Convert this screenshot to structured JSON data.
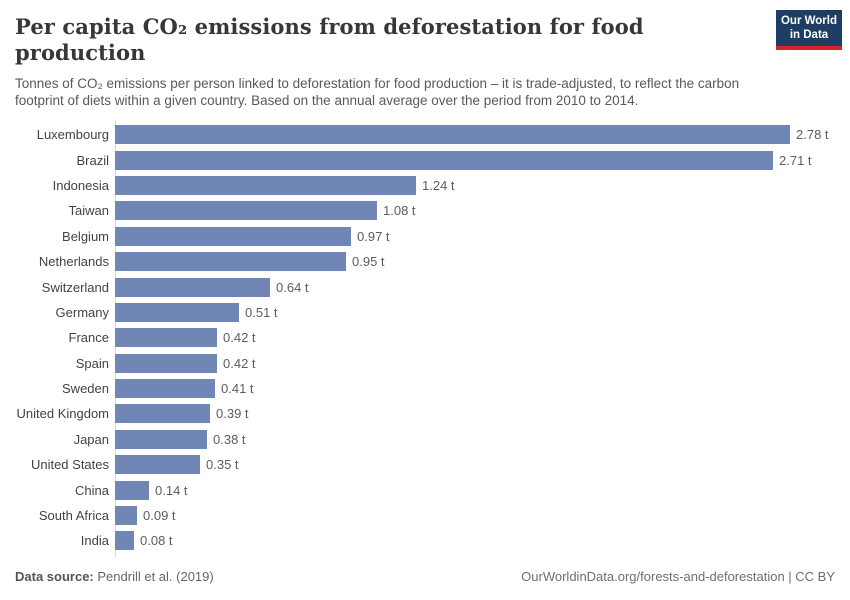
{
  "header": {
    "title": "Per capita CO₂ emissions from deforestation for food production",
    "subtitle": "Tonnes of CO₂ emissions per person linked to deforestation for food production – it is trade-adjusted, to reflect the carbon footprint of diets within a given country. Based on the annual average over the period from 2010 to 2014.",
    "logo": {
      "line1": "Our World",
      "line2": "in Data"
    }
  },
  "chart_data": {
    "type": "bar",
    "orientation": "horizontal",
    "title": "Per capita CO₂ emissions from deforestation for food production",
    "unit": "t",
    "xlim": [
      0,
      2.78
    ],
    "grid": false,
    "legend": false,
    "categories": [
      "Luxembourg",
      "Brazil",
      "Indonesia",
      "Taiwan",
      "Belgium",
      "Netherlands",
      "Switzerland",
      "Germany",
      "France",
      "Spain",
      "Sweden",
      "United Kingdom",
      "Japan",
      "United States",
      "China",
      "South Africa",
      "India"
    ],
    "values": [
      2.78,
      2.71,
      1.24,
      1.08,
      0.97,
      0.95,
      0.64,
      0.51,
      0.42,
      0.42,
      0.41,
      0.39,
      0.38,
      0.35,
      0.14,
      0.09,
      0.08
    ],
    "value_labels": [
      "2.78 t",
      "2.71 t",
      "1.24 t",
      "1.08 t",
      "0.97 t",
      "0.95 t",
      "0.64 t",
      "0.51 t",
      "0.42 t",
      "0.42 t",
      "0.41 t",
      "0.39 t",
      "0.38 t",
      "0.35 t",
      "0.14 t",
      "0.09 t",
      "0.08 t"
    ]
  },
  "footer": {
    "data_source_label": "Data source:",
    "data_source_value": "Pendrill et al. (2019)",
    "right_text": "OurWorldinData.org/forests-and-deforestation | CC BY"
  },
  "colors": {
    "bar": "#7086b4",
    "axis_line": "#dcdcdc",
    "logo_navy": "#1d3d63",
    "logo_red": "#d8232a"
  }
}
